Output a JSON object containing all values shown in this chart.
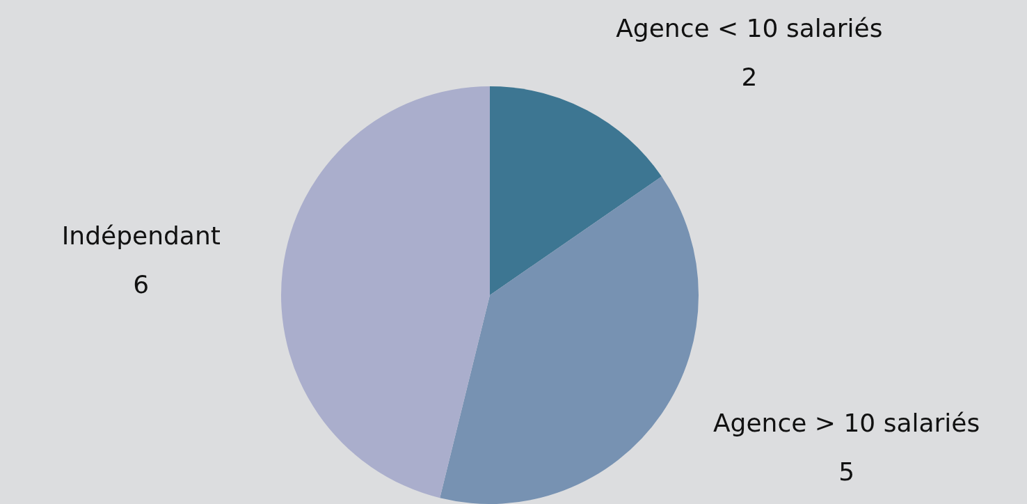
{
  "chart_data": {
    "type": "pie",
    "categories": [
      "Agence < 10 salariés",
      "Agence > 10 salariés",
      "Indépendant"
    ],
    "values": [
      2,
      5,
      6
    ],
    "colors": [
      "#3d7692",
      "#7792b2",
      "#aaaecc"
    ],
    "data_labels": true,
    "legend": false
  }
}
